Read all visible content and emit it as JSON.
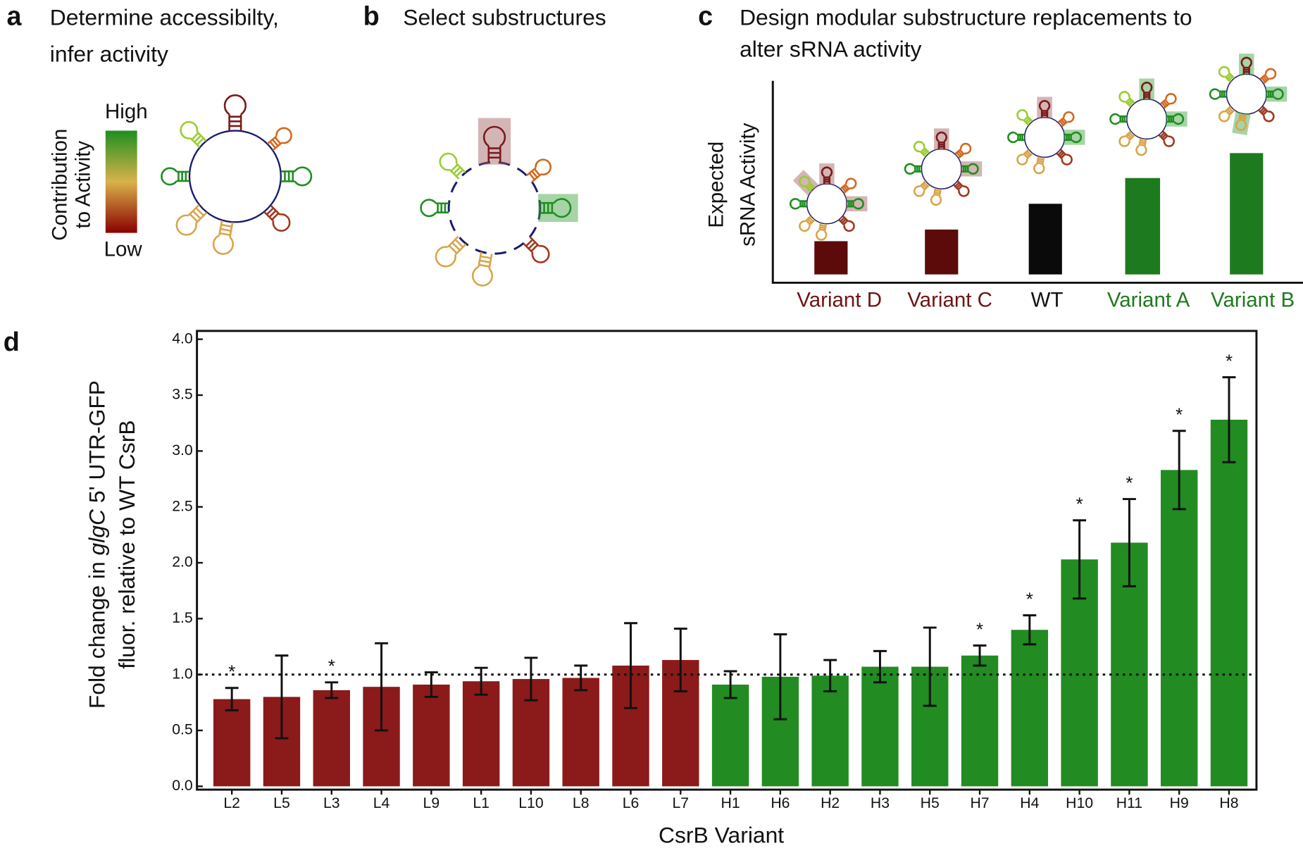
{
  "panel_a": {
    "letter": "a",
    "title": [
      "Determine accessibilty,",
      "infer activity"
    ],
    "legend_title": [
      "Contribution",
      "to Activity"
    ],
    "high": "High",
    "low": "Low"
  },
  "panel_b": {
    "letter": "b",
    "title": "Select substructures"
  },
  "panel_c": {
    "letter": "c",
    "title": [
      "Design modular substructure replacements to",
      "alter sRNA activity"
    ],
    "ylabel": [
      "Expected",
      "sRNA Activity"
    ],
    "labels": [
      "Variant D",
      "Variant C",
      "WT",
      "Variant A",
      "Variant B"
    ]
  },
  "chart_data": {
    "type": "bar",
    "letter": "d",
    "ylabel": [
      [
        "Fold change in ",
        "glgC",
        " 5' UTR-GFP"
      ],
      [
        "fluor. relative to WT CsrB"
      ]
    ],
    "xlabel": "CsrB Variant",
    "categories": [
      "L2",
      "L5",
      "L3",
      "L4",
      "L9",
      "L1",
      "L10",
      "L8",
      "L6",
      "L7",
      "H1",
      "H6",
      "H2",
      "H3",
      "H5",
      "H7",
      "H4",
      "H10",
      "H11",
      "H9",
      "H8"
    ],
    "values": [
      0.78,
      0.8,
      0.86,
      0.89,
      0.91,
      0.94,
      0.96,
      0.97,
      1.08,
      1.13,
      0.91,
      0.98,
      0.99,
      1.07,
      1.07,
      1.17,
      1.4,
      2.03,
      2.18,
      2.83,
      3.28
    ],
    "errors": [
      0.1,
      0.37,
      0.07,
      0.39,
      0.11,
      0.12,
      0.19,
      0.11,
      0.38,
      0.28,
      0.12,
      0.38,
      0.14,
      0.14,
      0.35,
      0.09,
      0.13,
      0.35,
      0.39,
      0.35,
      0.38
    ],
    "colors": [
      "#8b1a1a",
      "#8b1a1a",
      "#8b1a1a",
      "#8b1a1a",
      "#8b1a1a",
      "#8b1a1a",
      "#8b1a1a",
      "#8b1a1a",
      "#8b1a1a",
      "#8b1a1a",
      "#228b22",
      "#228b22",
      "#228b22",
      "#228b22",
      "#228b22",
      "#228b22",
      "#228b22",
      "#228b22",
      "#228b22",
      "#228b22",
      "#228b22"
    ],
    "significance": [
      "*",
      null,
      "*",
      null,
      null,
      null,
      null,
      null,
      null,
      null,
      null,
      null,
      null,
      null,
      null,
      "*",
      "*",
      "*",
      "*",
      "*",
      "*"
    ],
    "reference_line": 1.0,
    "ylim": [
      0,
      4.0
    ],
    "yticks": [
      {
        "value": 0,
        "label": "0.0"
      },
      {
        "value": 0.5,
        "label": "0.5"
      },
      {
        "value": 1,
        "label": "1.0"
      },
      {
        "value": 1.5,
        "label": "1.5"
      },
      {
        "value": 2,
        "label": "2.0"
      },
      {
        "value": 2.5,
        "label": "2.5"
      },
      {
        "value": 3,
        "label": "3.0"
      },
      {
        "value": 3.5,
        "label": "3.5"
      },
      {
        "value": 4,
        "label": "4.0"
      }
    ]
  }
}
